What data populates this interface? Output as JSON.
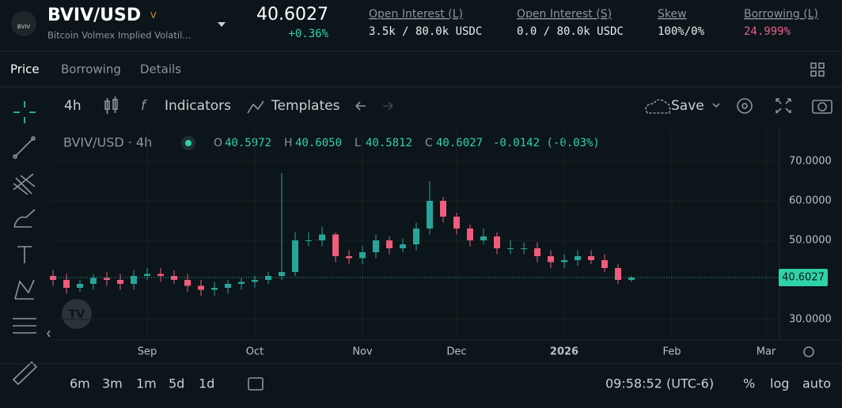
{
  "header": {
    "logo": "BVIV",
    "symbol": "BVIV/USD",
    "badge": "V",
    "subtitle": "Bitcoin Volmex Implied Volatil...",
    "price": "40.6027",
    "change": "+0.36%",
    "stats": [
      {
        "label": "Open Interest (L)",
        "value": "3.5k / 80.0k USDC"
      },
      {
        "label": "Open Interest (S)",
        "value": "0.0 / 80.0k USDC"
      },
      {
        "label": "Skew",
        "value": "100%/0%"
      },
      {
        "label": "Borrowing (L)",
        "value": "24.999%"
      }
    ]
  },
  "tabs": [
    "Price",
    "Borrowing",
    "Details"
  ],
  "toolbar": {
    "interval": "4h",
    "indicators": "Indicators",
    "templates": "Templates",
    "save": "Save"
  },
  "legend": {
    "symbol": "BVIV/USD · 4h",
    "items": [
      {
        "label": "O",
        "value": "40.5972"
      },
      {
        "label": "H",
        "value": "40.6050"
      },
      {
        "label": "L",
        "value": "40.5812"
      },
      {
        "label": "C",
        "value": "40.6027"
      }
    ],
    "change": "-0.0142 (-0.03%)"
  },
  "bottom": {
    "ranges": [
      "6m",
      "3m",
      "1m",
      "5d",
      "1d"
    ],
    "time": "09:58:52 (UTC-6)",
    "options": [
      "%",
      "log",
      "auto"
    ]
  },
  "chart_data": {
    "type": "candlestick",
    "up_color": "#26a69a",
    "down_color": "#ef5c7c",
    "categories": [
      null,
      null,
      null,
      null,
      null,
      null,
      null,
      "Sep",
      null,
      null,
      null,
      null,
      null,
      null,
      null,
      "Oct",
      null,
      null,
      null,
      null,
      null,
      null,
      null,
      "Nov",
      null,
      null,
      null,
      null,
      null,
      null,
      "Dec",
      null,
      null,
      null,
      null,
      null,
      null,
      null,
      "2026",
      null,
      null,
      null,
      null,
      null,
      null,
      null,
      "Feb",
      null,
      null,
      null,
      null,
      null,
      null,
      "Mar"
    ],
    "open": [
      41,
      40,
      38,
      39,
      40.5,
      40,
      39,
      41,
      41.5,
      41,
      40,
      38.5,
      37.5,
      38,
      39,
      39.5,
      40,
      41,
      42,
      50,
      50,
      51.5,
      46,
      45.5,
      47,
      50,
      48,
      49,
      53,
      60,
      56,
      53,
      50,
      51,
      48,
      48,
      48,
      46,
      44.5,
      45,
      46,
      45,
      43,
      40,
      null,
      null,
      null,
      null,
      null,
      null,
      null,
      null,
      null,
      null
    ],
    "high": [
      42.5,
      41.5,
      40,
      41.5,
      42,
      41.5,
      42.5,
      43,
      43,
      42.5,
      41.5,
      40,
      39.5,
      40,
      40.5,
      41,
      42,
      67,
      52,
      52,
      53.5,
      52,
      47.5,
      48.5,
      51.5,
      51,
      50.5,
      54.5,
      65,
      61,
      57,
      54,
      53,
      52,
      50,
      49.5,
      49.5,
      47.5,
      46.5,
      47.5,
      47.5,
      46.5,
      44,
      41,
      null,
      null,
      null,
      null,
      null,
      null,
      null,
      null,
      null,
      null
    ],
    "low": [
      38.5,
      36.5,
      37,
      37.5,
      38.5,
      37.5,
      37.5,
      40,
      39.5,
      39,
      37,
      36,
      36,
      36.5,
      37.5,
      38,
      39,
      40,
      41,
      48.5,
      48.5,
      44.5,
      44,
      44,
      45.5,
      46.5,
      47,
      47.5,
      51.5,
      54.5,
      51.5,
      48.5,
      49,
      46.5,
      46.5,
      46.5,
      44.5,
      43,
      43,
      43.5,
      44,
      42,
      39,
      39.5,
      null,
      null,
      null,
      null,
      null,
      null,
      null,
      null,
      null,
      null
    ],
    "close": [
      40,
      38,
      39,
      40.5,
      40,
      39,
      41,
      41.5,
      41,
      40,
      38.5,
      37.5,
      38,
      39,
      39.5,
      40,
      41,
      42,
      50,
      50,
      51.5,
      46,
      45.5,
      47,
      50,
      48,
      49,
      53,
      60,
      56,
      53,
      50,
      51,
      48,
      48,
      48,
      46,
      44.5,
      45,
      46,
      45,
      43,
      40,
      40.6,
      null,
      null,
      null,
      null,
      null,
      null,
      null,
      null,
      null,
      null
    ],
    "last_price": 40.6027,
    "ylim": [
      24.8,
      77.8
    ],
    "yticks": [
      {
        "value": 30,
        "label": "30.0000"
      },
      {
        "value": 50,
        "label": "50.0000"
      },
      {
        "value": 60,
        "label": "60.0000"
      },
      {
        "value": 70,
        "label": "70.0000"
      }
    ],
    "grid": true
  }
}
